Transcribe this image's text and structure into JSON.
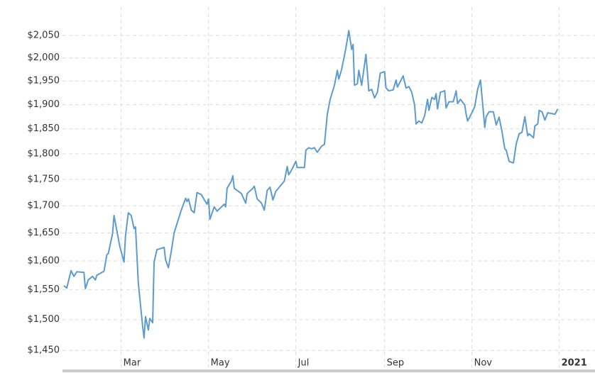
{
  "chart_data": {
    "type": "line",
    "x": [
      20,
      22,
      25,
      27,
      29,
      34,
      35,
      37,
      40,
      42,
      43,
      48,
      50,
      51,
      54,
      55,
      57,
      59,
      62,
      63,
      65,
      67,
      69,
      70,
      72,
      75,
      76,
      77,
      79,
      80,
      82,
      83,
      85,
      90,
      91,
      93,
      95,
      97,
      99,
      102,
      105,
      106,
      107,
      109,
      111,
      113,
      116,
      119,
      120,
      121,
      122,
      125,
      127,
      132,
      133,
      134,
      137,
      138,
      139,
      144,
      147,
      148,
      152,
      153,
      155,
      158,
      160,
      162,
      164,
      166,
      168,
      171,
      174,
      176,
      177,
      179,
      182,
      183,
      188,
      189,
      191,
      193,
      195,
      197,
      200,
      202,
      204,
      206,
      209,
      211,
      212,
      214,
      217,
      219,
      221,
      222,
      223,
      225,
      226,
      228,
      231,
      233,
      235,
      237,
      239,
      241,
      244,
      245,
      247,
      250,
      252,
      253,
      257,
      259,
      261,
      263,
      265,
      266,
      268,
      270,
      272,
      274,
      275,
      277,
      279,
      280,
      281,
      283,
      286,
      287,
      289,
      292,
      294,
      295,
      297,
      300,
      301,
      302,
      305,
      307,
      309,
      311,
      314,
      315,
      317,
      320,
      322,
      324,
      326,
      328,
      329,
      331,
      334,
      336,
      338,
      340,
      342,
      344,
      345,
      348,
      349,
      351,
      352,
      354,
      356,
      358,
      363,
      365
    ],
    "series": [
      {
        "color": "#5c9bcf",
        "values": [
          1557,
          1553,
          1583,
          1573,
          1581,
          1580,
          1552,
          1567,
          1573,
          1567,
          1575,
          1582,
          1611,
          1613,
          1649,
          1682,
          1654,
          1626,
          1598,
          1644,
          1687,
          1682,
          1658,
          1661,
          1561,
          1489,
          1470,
          1505,
          1483,
          1502,
          1495,
          1598,
          1620,
          1624,
          1602,
          1588,
          1617,
          1650,
          1667,
          1692,
          1714,
          1708,
          1713,
          1692,
          1687,
          1725,
          1721,
          1707,
          1703,
          1713,
          1675,
          1698,
          1690,
          1703,
          1698,
          1733,
          1747,
          1757,
          1733,
          1723,
          1705,
          1723,
          1733,
          1737,
          1713,
          1705,
          1692,
          1729,
          1735,
          1711,
          1727,
          1737,
          1747,
          1775,
          1759,
          1768,
          1785,
          1773,
          1773,
          1807,
          1812,
          1810,
          1812,
          1803,
          1815,
          1819,
          1880,
          1911,
          1941,
          1973,
          1954,
          1975,
          2022,
          2061,
          2019,
          2030,
          1941,
          1944,
          1973,
          1941,
          2008,
          1929,
          1932,
          1914,
          1926,
          1967,
          1970,
          1935,
          1929,
          1931,
          1952,
          1937,
          1961,
          1935,
          1938,
          1926,
          1899,
          1860,
          1866,
          1862,
          1877,
          1911,
          1888,
          1915,
          1911,
          1923,
          1891,
          1926,
          1929,
          1893,
          1906,
          1906,
          1929,
          1902,
          1911,
          1899,
          1880,
          1866,
          1883,
          1896,
          1932,
          1952,
          1853,
          1875,
          1885,
          1885,
          1858,
          1874,
          1845,
          1810,
          1807,
          1785,
          1782,
          1820,
          1840,
          1843,
          1875,
          1836,
          1840,
          1832,
          1856,
          1860,
          1888,
          1885,
          1868,
          1883,
          1880,
          1891
        ]
      }
    ],
    "xlim": [
      19,
      391
    ],
    "xticks": [
      {
        "value": 60,
        "label": "Mar"
      },
      {
        "value": 121,
        "label": "May"
      },
      {
        "value": 182,
        "label": "Jul"
      },
      {
        "value": 244,
        "label": "Sep"
      },
      {
        "value": 305,
        "label": "Nov"
      },
      {
        "value": 366,
        "label": "2021"
      }
    ],
    "ylim": [
      1439,
      2115
    ],
    "log_y": true,
    "yticks": [
      {
        "value": 1450,
        "label": "$1,450"
      },
      {
        "value": 1500,
        "label": "$1,500"
      },
      {
        "value": 1550,
        "label": "$1,550"
      },
      {
        "value": 1600,
        "label": "$1,600"
      },
      {
        "value": 1650,
        "label": "$1,650"
      },
      {
        "value": 1700,
        "label": "$1,700"
      },
      {
        "value": 1750,
        "label": "$1,750"
      },
      {
        "value": 1800,
        "label": "$1,800"
      },
      {
        "value": 1850,
        "label": "$1,850"
      },
      {
        "value": 1900,
        "label": "$1,900"
      },
      {
        "value": 1950,
        "label": "$1,950"
      },
      {
        "value": 2000,
        "label": "$2,000"
      },
      {
        "value": 2050,
        "label": "$2,050"
      }
    ],
    "grid": true
  }
}
